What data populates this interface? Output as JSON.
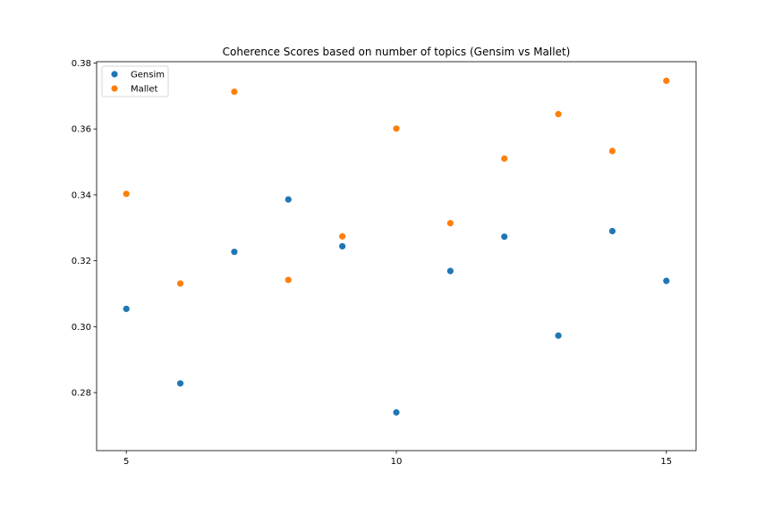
{
  "chart_data": {
    "type": "scatter",
    "title": "Coherence Scores based on number of topics (Gensim vs Mallet)",
    "xlabel": "",
    "ylabel": "",
    "xlim": [
      4.45,
      15.55
    ],
    "ylim": [
      0.2624,
      0.3804
    ],
    "xticks": [
      5,
      10,
      15
    ],
    "xtick_labels": [
      "5",
      "10",
      "15"
    ],
    "yticks": [
      0.28,
      0.3,
      0.32,
      0.34,
      0.36,
      0.38
    ],
    "ytick_labels": [
      "0.28",
      "0.30",
      "0.32",
      "0.34",
      "0.36",
      "0.38"
    ],
    "grid": false,
    "legend_position": "top-left",
    "series": [
      {
        "name": "Gensim",
        "color": "#1f77b4",
        "x": [
          5,
          6,
          7,
          8,
          9,
          10,
          11,
          12,
          13,
          14,
          15
        ],
        "y": [
          0.3054,
          0.2828,
          0.3227,
          0.3386,
          0.3244,
          0.274,
          0.3169,
          0.3273,
          0.2973,
          0.329,
          0.3139
        ]
      },
      {
        "name": "Mallet",
        "color": "#ff7f0e",
        "x": [
          5,
          6,
          7,
          8,
          9,
          10,
          11,
          12,
          13,
          14,
          15
        ],
        "y": [
          0.3403,
          0.3131,
          0.3713,
          0.3142,
          0.3274,
          0.3601,
          0.3314,
          0.351,
          0.3645,
          0.3533,
          0.3746
        ]
      }
    ]
  }
}
